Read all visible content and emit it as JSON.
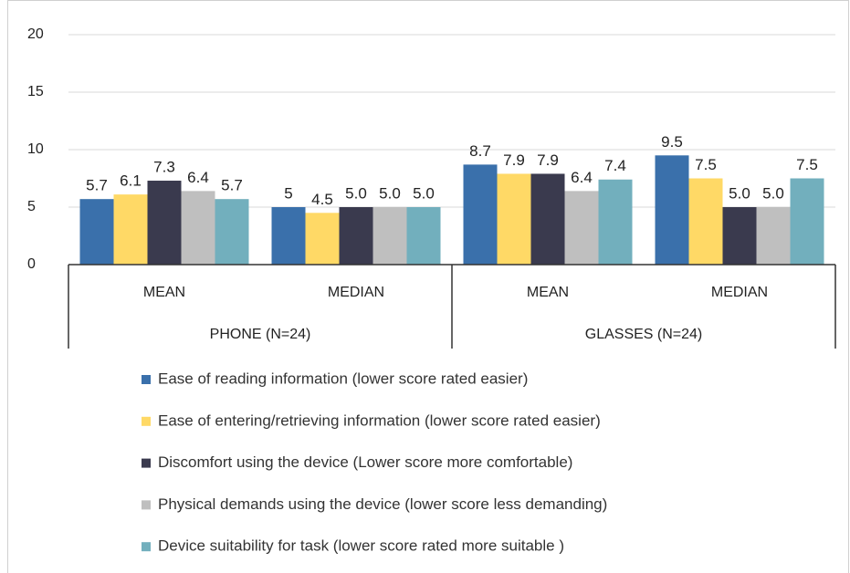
{
  "chart_data": {
    "type": "bar",
    "categories": [
      "MEAN",
      "MEDIAN",
      "MEAN",
      "MEDIAN"
    ],
    "groups": [
      "PHONE (N=24)",
      "GLASSES (N=24)"
    ],
    "series": [
      {
        "name": "Ease of reading information (lower score rated easier)",
        "color": "#3a70ab",
        "values": [
          5.7,
          5,
          8.7,
          9.5
        ],
        "value_labels": [
          "5.7",
          "5",
          "8.7",
          "9.5"
        ]
      },
      {
        "name": "Ease of entering/retrieving information (lower score rated easier)",
        "color": "#ffd966",
        "values": [
          6.1,
          4.5,
          7.9,
          7.5
        ],
        "value_labels": [
          "6.1",
          "4.5",
          "7.9",
          "7.5"
        ]
      },
      {
        "name": "Discomfort using the device (Lower score more comfortable)",
        "color": "#3a3a4e",
        "values": [
          7.3,
          5,
          7.9,
          5
        ],
        "value_labels": [
          "7.3",
          "5.0",
          "7.9",
          "5.0"
        ]
      },
      {
        "name": "Physical demands using the device (lower score less demanding)",
        "color": "#bfbfbf",
        "values": [
          6.4,
          5,
          6.4,
          5
        ],
        "value_labels": [
          "6.4",
          "5.0",
          "6.4",
          "5.0"
        ]
      },
      {
        "name": "Device suitability for task (lower score rated more suitable )",
        "color": "#72afbd",
        "values": [
          5.7,
          5,
          7.4,
          7.5
        ],
        "value_labels": [
          "5.7",
          "5.0",
          "7.4",
          "7.5"
        ]
      }
    ],
    "ylim": [
      0,
      20
    ],
    "yticks": [
      0,
      5,
      10,
      15,
      20
    ],
    "grid": true,
    "legend": "bottom"
  }
}
